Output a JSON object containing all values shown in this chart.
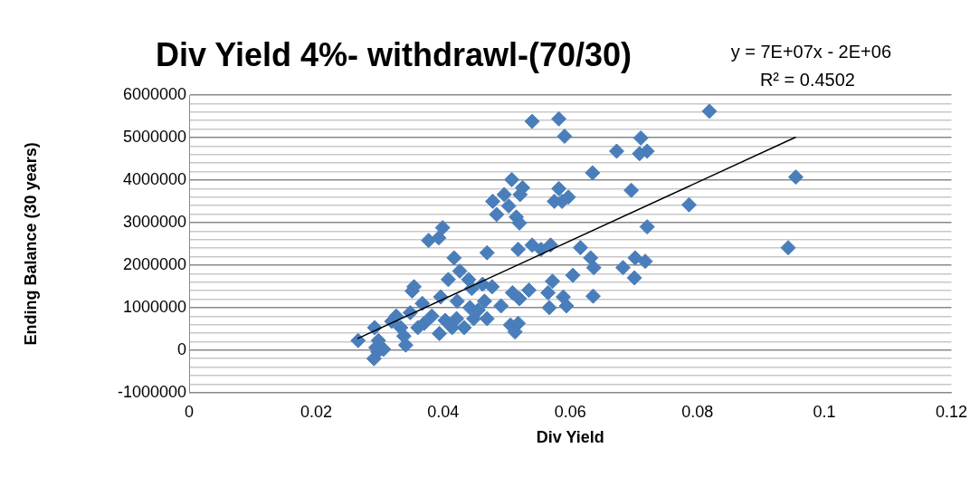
{
  "chart_data": {
    "type": "scatter",
    "title": "Div Yield 4%- withdrawl-(70/30)",
    "xlabel": "Div Yield",
    "ylabel": "Ending Balance (30 years)",
    "annotations": [
      "y = 7E+07x - 2E+06",
      "R² = 0.4502"
    ],
    "grid": "y",
    "legend": false,
    "xlim": [
      0,
      0.12
    ],
    "xticks": [
      0,
      0.02,
      0.04,
      0.06,
      0.08,
      0.1,
      0.12
    ],
    "ylim": [
      -1000000,
      6000000
    ],
    "yticks": [
      -1000000,
      {
        "value": -800000,
        "label": null
      },
      {
        "value": -600000,
        "label": null
      },
      {
        "value": -400000,
        "label": null
      },
      {
        "value": -200000,
        "label": null
      },
      0,
      {
        "value": 200000,
        "label": null
      },
      {
        "value": 400000,
        "label": null
      },
      {
        "value": 600000,
        "label": null
      },
      {
        "value": 800000,
        "label": null
      },
      1000000,
      {
        "value": 1200000,
        "label": null
      },
      {
        "value": 1400000,
        "label": null
      },
      {
        "value": 1600000,
        "label": null
      },
      {
        "value": 1800000,
        "label": null
      },
      2000000,
      {
        "value": 2200000,
        "label": null
      },
      {
        "value": 2400000,
        "label": null
      },
      {
        "value": 2600000,
        "label": null
      },
      {
        "value": 2800000,
        "label": null
      },
      3000000,
      {
        "value": 3200000,
        "label": null
      },
      {
        "value": 3400000,
        "label": null
      },
      {
        "value": 3600000,
        "label": null
      },
      {
        "value": 3800000,
        "label": null
      },
      4000000,
      {
        "value": 4200000,
        "label": null
      },
      {
        "value": 4400000,
        "label": null
      },
      {
        "value": 4600000,
        "label": null
      },
      {
        "value": 4800000,
        "label": null
      },
      5000000,
      {
        "value": 5200000,
        "label": null
      },
      {
        "value": 5400000,
        "label": null
      },
      {
        "value": 5600000,
        "label": null
      },
      {
        "value": 5800000,
        "label": null
      },
      6000000
    ],
    "series": [
      {
        "type": "scatter",
        "marker": "diamond",
        "color": "#4a7ebb",
        "x": [
          0.0266,
          0.0292,
          0.0294,
          0.0291,
          0.0297,
          0.0306,
          0.0298,
          0.0319,
          0.0326,
          0.0333,
          0.0338,
          0.0341,
          0.0348,
          0.0351,
          0.0354,
          0.036,
          0.0367,
          0.037,
          0.0382,
          0.0377,
          0.0393,
          0.0399,
          0.0396,
          0.0394,
          0.0403,
          0.0408,
          0.0414,
          0.0417,
          0.0422,
          0.0426,
          0.0421,
          0.0433,
          0.044,
          0.0442,
          0.0448,
          0.0445,
          0.0455,
          0.0462,
          0.0465,
          0.0469,
          0.0477,
          0.0469,
          0.0478,
          0.0484,
          0.0491,
          0.0496,
          0.0503,
          0.0508,
          0.0509,
          0.0506,
          0.0513,
          0.0515,
          0.052,
          0.0521,
          0.0525,
          0.0518,
          0.052,
          0.0518,
          0.054,
          0.054,
          0.0535,
          0.0554,
          0.0569,
          0.0565,
          0.0567,
          0.0572,
          0.0575,
          0.0582,
          0.0582,
          0.0587,
          0.0589,
          0.0591,
          0.0594,
          0.0597,
          0.0604,
          0.0616,
          0.0632,
          0.0635,
          0.0637,
          0.0636,
          0.0673,
          0.0683,
          0.0696,
          0.0701,
          0.0702,
          0.0709,
          0.0711,
          0.0721,
          0.0721,
          0.0718,
          0.0787,
          0.0819,
          0.0943,
          0.0955
        ],
        "values": [
          225000,
          530000,
          60000,
          -200000,
          -40000,
          20000,
          225000,
          675000,
          800000,
          530000,
          330000,
          120000,
          880000,
          1390000,
          1490000,
          530000,
          1100000,
          630000,
          800000,
          2580000,
          2640000,
          2880000,
          1250000,
          390000,
          700000,
          1660000,
          530000,
          2170000,
          1150000,
          1860000,
          740000,
          530000,
          1660000,
          1000000,
          740000,
          1450000,
          940000,
          1550000,
          1150000,
          2290000,
          1490000,
          740000,
          3500000,
          3190000,
          1040000,
          3660000,
          3390000,
          4010000,
          1350000,
          590000,
          430000,
          3130000,
          2990000,
          3660000,
          3820000,
          630000,
          1210000,
          2370000,
          5380000,
          2470000,
          1410000,
          2370000,
          2470000,
          1350000,
          1000000,
          1620000,
          3500000,
          5440000,
          3800000,
          3500000,
          1250000,
          5030000,
          1040000,
          3600000,
          1760000,
          2410000,
          2170000,
          4170000,
          1940000,
          1270000,
          4680000,
          1940000,
          3760000,
          1700000,
          2170000,
          4620000,
          4990000,
          4680000,
          2900000,
          2090000,
          3420000,
          5620000,
          2410000,
          4070000
        ]
      },
      {
        "type": "line",
        "marker": "none",
        "color": "#000000",
        "x": [
          0.0265,
          0.0955
        ],
        "values": [
          270000,
          5010000
        ]
      }
    ]
  }
}
